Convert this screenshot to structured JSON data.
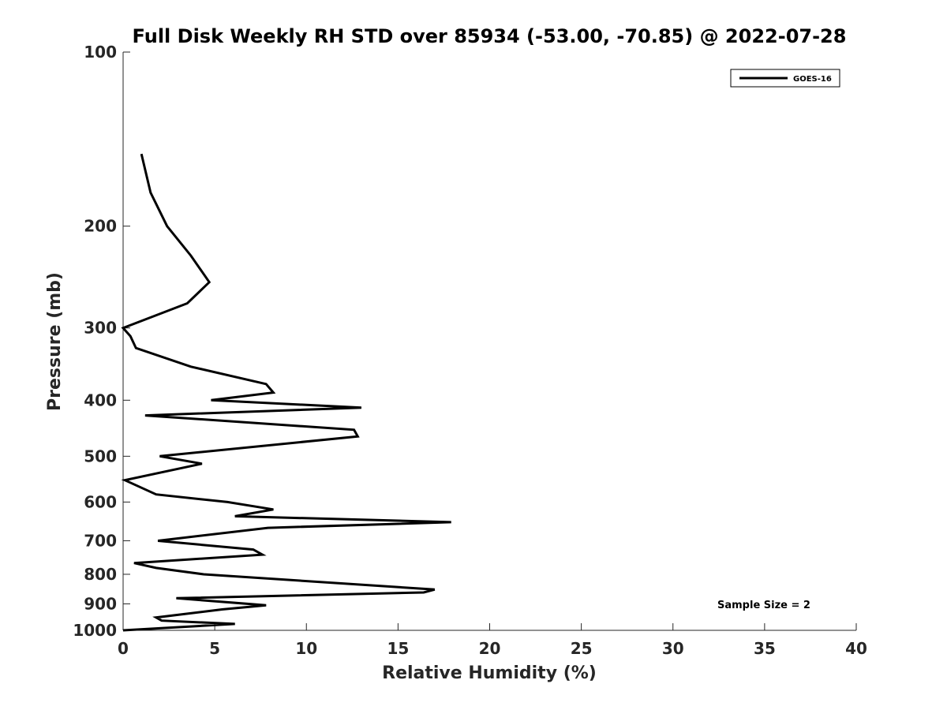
{
  "chart_data": {
    "type": "line",
    "title": "Full Disk Weekly RH STD over 85934 (-53.00, -70.85) @ 2022-07-28",
    "xlabel": "Relative Humidity (%)",
    "ylabel": "Pressure (mb)",
    "xlim": [
      0,
      40
    ],
    "ylim": [
      100,
      1000
    ],
    "yscale": "log",
    "y_inverted": true,
    "x_ticks": [
      "0",
      "5",
      "10",
      "15",
      "20",
      "25",
      "30",
      "35",
      "40"
    ],
    "y_ticks": [
      "100",
      "200",
      "300",
      "400",
      "500",
      "600",
      "700",
      "800",
      "900",
      "1000"
    ],
    "legend_position": "top-right",
    "annotation": "Sample Size = 2",
    "series": [
      {
        "name": "GOES-16",
        "color": "#000000",
        "points": [
          [
            1.0,
            150
          ],
          [
            1.5,
            175
          ],
          [
            2.4,
            200
          ],
          [
            3.7,
            225
          ],
          [
            4.7,
            250
          ],
          [
            3.5,
            272
          ],
          [
            0.0,
            300
          ],
          [
            0.4,
            310
          ],
          [
            0.7,
            325
          ],
          [
            3.7,
            350
          ],
          [
            7.8,
            375
          ],
          [
            8.2,
            388
          ],
          [
            4.8,
            400
          ],
          [
            13.0,
            412
          ],
          [
            1.2,
            425
          ],
          [
            12.6,
            450
          ],
          [
            12.8,
            462
          ],
          [
            2.0,
            500
          ],
          [
            4.3,
            515
          ],
          [
            0.1,
            550
          ],
          [
            1.8,
            582
          ],
          [
            5.7,
            600
          ],
          [
            8.2,
            618
          ],
          [
            6.1,
            635
          ],
          [
            17.9,
            650
          ],
          [
            7.9,
            665
          ],
          [
            1.9,
            700
          ],
          [
            7.1,
            725
          ],
          [
            7.6,
            740
          ],
          [
            0.6,
            765
          ],
          [
            1.8,
            780
          ],
          [
            4.4,
            800
          ],
          [
            17.0,
            850
          ],
          [
            16.4,
            860
          ],
          [
            2.9,
            880
          ],
          [
            7.8,
            905
          ],
          [
            5.4,
            920
          ],
          [
            1.8,
            950
          ],
          [
            2.1,
            962
          ],
          [
            6.1,
            975
          ],
          [
            0.0,
            1000
          ]
        ]
      }
    ]
  }
}
